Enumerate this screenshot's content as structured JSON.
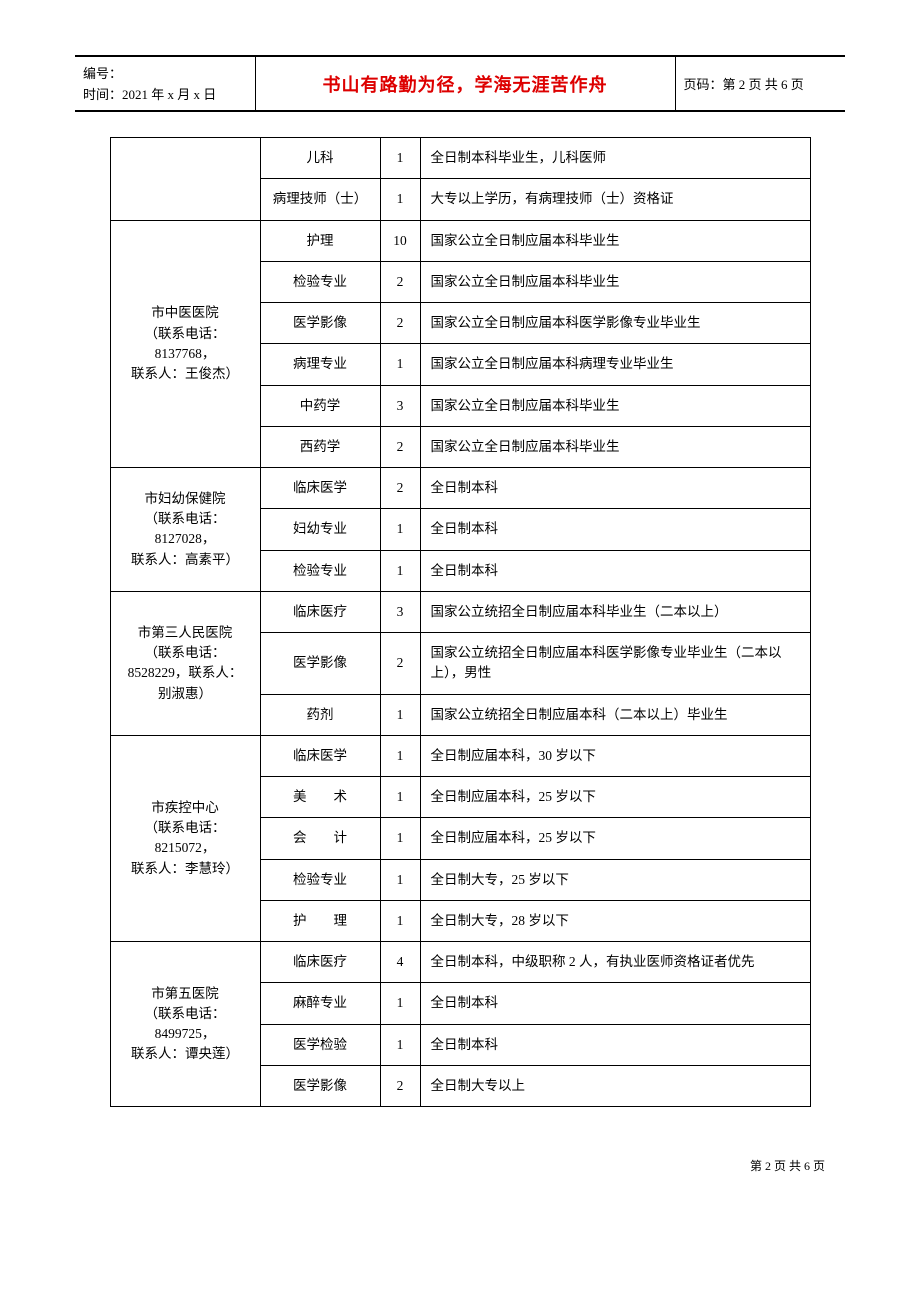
{
  "header": {
    "bianhao_label": "编号：",
    "time_label": "时间：2021 年 x 月 x 日",
    "motto": "书山有路勤为径，学海无涯苦作舟",
    "page_label": "页码：第 2 页 共 6 页"
  },
  "footer": "第 2 页 共 6 页",
  "orphan_rows": [
    {
      "spec": "儿科",
      "num": "1",
      "req": "全日制本科毕业生，儿科医师"
    },
    {
      "spec": "病理技师（士）",
      "num": "1",
      "req": "大专以上学历，有病理技师（士）资格证"
    }
  ],
  "groups": [
    {
      "org_lines": [
        "市中医医院",
        "（联系电话：",
        "8137768，",
        "联系人：王俊杰）"
      ],
      "rows": [
        {
          "spec": "护理",
          "num": "10",
          "req": "国家公立全日制应届本科毕业生"
        },
        {
          "spec": "检验专业",
          "num": "2",
          "req": "国家公立全日制应届本科毕业生"
        },
        {
          "spec": "医学影像",
          "num": "2",
          "req": "国家公立全日制应届本科医学影像专业毕业生"
        },
        {
          "spec": "病理专业",
          "num": "1",
          "req": "国家公立全日制应届本科病理专业毕业生"
        },
        {
          "spec": "中药学",
          "num": "3",
          "req": "国家公立全日制应届本科毕业生"
        },
        {
          "spec": "西药学",
          "num": "2",
          "req": "国家公立全日制应届本科毕业生"
        }
      ]
    },
    {
      "org_lines": [
        "市妇幼保健院",
        "（联系电话：",
        "8127028，",
        "联系人：高素平）"
      ],
      "rows": [
        {
          "spec": "临床医学",
          "num": "2",
          "req": "全日制本科"
        },
        {
          "spec": "妇幼专业",
          "num": "1",
          "req": "全日制本科"
        },
        {
          "spec": "检验专业",
          "num": "1",
          "req": "全日制本科"
        }
      ]
    },
    {
      "org_lines": [
        "市第三人民医院",
        "（联系电话：",
        "8528229，联系人：",
        "别淑惠）"
      ],
      "rows": [
        {
          "spec": "临床医疗",
          "num": "3",
          "req": "国家公立统招全日制应届本科毕业生（二本以上）"
        },
        {
          "spec": "医学影像",
          "num": "2",
          "req": "国家公立统招全日制应届本科医学影像专业毕业生（二本以上），男性"
        },
        {
          "spec": "药剂",
          "num": "1",
          "req": "国家公立统招全日制应届本科（二本以上）毕业生"
        }
      ]
    },
    {
      "org_lines": [
        "市疾控中心",
        "（联系电话：",
        "8215072，",
        "联系人：李慧玲）"
      ],
      "rows": [
        {
          "spec": "临床医学",
          "num": "1",
          "req": "全日制应届本科，30 岁以下"
        },
        {
          "spec": "美　　术",
          "num": "1",
          "req": "全日制应届本科，25 岁以下"
        },
        {
          "spec": "会　　计",
          "num": "1",
          "req": "全日制应届本科，25 岁以下"
        },
        {
          "spec": "检验专业",
          "num": "1",
          "req": "全日制大专，25 岁以下"
        },
        {
          "spec": "护　　理",
          "num": "1",
          "req": "全日制大专，28 岁以下"
        }
      ]
    },
    {
      "org_lines": [
        "市第五医院",
        "（联系电话：",
        "8499725，",
        "联系人：谭央莲）"
      ],
      "rows": [
        {
          "spec": "临床医疗",
          "num": "4",
          "req": "全日制本科，中级职称 2 人，有执业医师资格证者优先"
        },
        {
          "spec": "麻醉专业",
          "num": "1",
          "req": "全日制本科"
        },
        {
          "spec": "医学检验",
          "num": "1",
          "req": "全日制本科"
        },
        {
          "spec": "医学影像",
          "num": "2",
          "req": "全日制大专以上"
        }
      ]
    }
  ]
}
